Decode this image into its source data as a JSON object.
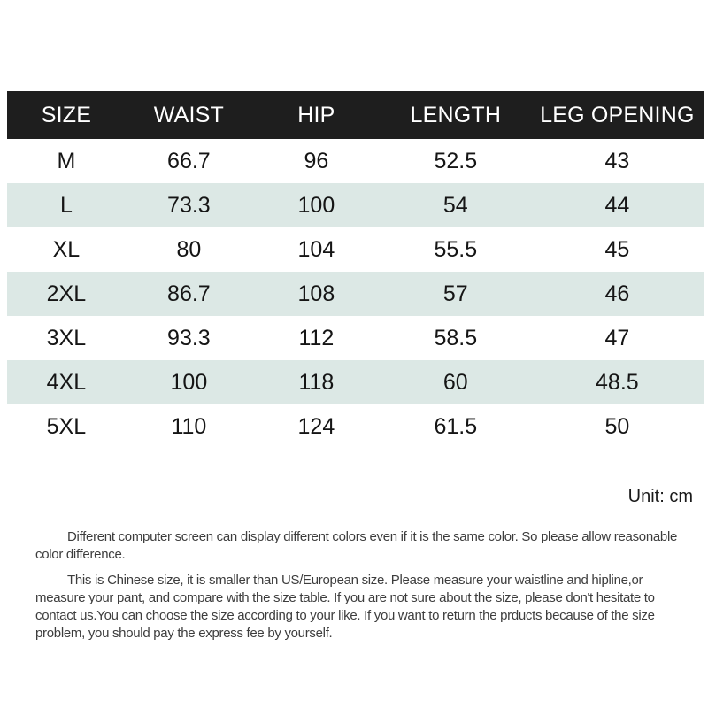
{
  "colors": {
    "page_bg": "#ffffff",
    "header_bg": "#1e1e1e",
    "header_text": "#ffffff",
    "stripe": "#dce8e5",
    "table_text": "#151515",
    "note_text": "#1a1a1a",
    "body_text": "#3d3d3d"
  },
  "table": {
    "columns": [
      "SIZE",
      "WAIST",
      "HIP",
      "LENGTH",
      "LEG OPENING"
    ],
    "rows": [
      [
        "M",
        "66.7",
        "96",
        "52.5",
        "43"
      ],
      [
        "L",
        "73.3",
        "100",
        "54",
        "44"
      ],
      [
        "XL",
        "80",
        "104",
        "55.5",
        "45"
      ],
      [
        "2XL",
        "86.7",
        "108",
        "57",
        "46"
      ],
      [
        "3XL",
        "93.3",
        "112",
        "58.5",
        "47"
      ],
      [
        "4XL",
        "100",
        "118",
        "60",
        "48.5"
      ],
      [
        "5XL",
        "110",
        "124",
        "61.5",
        "50"
      ]
    ]
  },
  "unit_note": "Unit: cm",
  "disclaimers": [
    "Different computer screen can display different colors even if it is the same color. So please allow reasonable color difference.",
    "This is Chinese size, it is smaller than US/European size. Please measure your waistline and hipline,or measure your pant, and compare with the size table. If you are not sure about the size, please don't hesitate to contact us.You can choose the size according to your like. If you want to return the prducts because of the size problem, you should pay the express fee by yourself."
  ]
}
